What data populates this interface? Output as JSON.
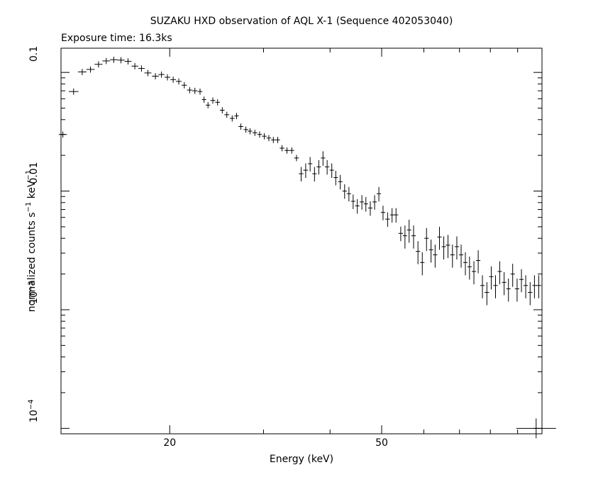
{
  "chart_data": {
    "type": "scatter",
    "title": "SUZAKU HXD observation of AQL X-1 (Sequence 402053040)",
    "subtitle": "Exposure time: 16.3ks",
    "xlabel": "Energy (keV)",
    "ylabel_parts": [
      "normalized counts s",
      "−1",
      " keV",
      "−1"
    ],
    "x_scale": "log",
    "y_scale": "log",
    "xlim": [
      12.5,
      100
    ],
    "ylim": [
      9e-05,
      0.16
    ],
    "x_ticks": [
      {
        "value": 20,
        "label": "20"
      },
      {
        "value": 50,
        "label": "50"
      }
    ],
    "y_ticks": [
      {
        "value": 0.1,
        "label": "0.1"
      },
      {
        "value": 0.01,
        "label": "0.01"
      },
      {
        "value": 0.001,
        "label": "10",
        "sup": "−3"
      },
      {
        "value": 0.0001,
        "label": "10",
        "sup": "−4"
      }
    ],
    "grid": false,
    "series": [
      {
        "points": [
          [
            12.6,
            0.03
          ],
          [
            13.2,
            0.069
          ],
          [
            13.7,
            0.101
          ],
          [
            14.2,
            0.106
          ],
          [
            14.7,
            0.117
          ],
          [
            15.2,
            0.125
          ],
          [
            15.7,
            0.128
          ],
          [
            16.2,
            0.127
          ],
          [
            16.7,
            0.124
          ],
          [
            17.2,
            0.113
          ],
          [
            17.7,
            0.108
          ],
          [
            18.2,
            0.099
          ],
          [
            18.8,
            0.093
          ],
          [
            19.3,
            0.096
          ],
          [
            19.8,
            0.091
          ],
          [
            20.3,
            0.087
          ],
          [
            20.8,
            0.084
          ],
          [
            21.3,
            0.078
          ],
          [
            21.8,
            0.071
          ],
          [
            22.3,
            0.07
          ],
          [
            22.8,
            0.069
          ],
          [
            23.2,
            0.059
          ],
          [
            23.6,
            0.053
          ],
          [
            24.1,
            0.058
          ],
          [
            24.6,
            0.056
          ],
          [
            25.1,
            0.048
          ],
          [
            25.6,
            0.044
          ],
          [
            26.2,
            0.041
          ],
          [
            26.7,
            0.043
          ],
          [
            27.2,
            0.035
          ],
          [
            27.8,
            0.033
          ],
          [
            28.3,
            0.032
          ],
          [
            28.9,
            0.031
          ],
          [
            29.5,
            0.03
          ],
          [
            30.1,
            0.029
          ],
          [
            30.7,
            0.028
          ],
          [
            31.3,
            0.027
          ],
          [
            31.9,
            0.027
          ],
          [
            32.5,
            0.023
          ],
          [
            33.2,
            0.022
          ],
          [
            33.9,
            0.022
          ],
          [
            34.6,
            0.019
          ],
          [
            35.3,
            0.014
          ],
          [
            36.0,
            0.015
          ],
          [
            36.7,
            0.017
          ],
          [
            37.4,
            0.014
          ],
          [
            38.1,
            0.016
          ],
          [
            38.8,
            0.019
          ],
          [
            39.5,
            0.016
          ],
          [
            40.3,
            0.015
          ],
          [
            41.0,
            0.013
          ],
          [
            41.8,
            0.012
          ],
          [
            42.6,
            0.01
          ],
          [
            43.4,
            0.0095
          ],
          [
            44.2,
            0.0082
          ],
          [
            45.0,
            0.0075
          ],
          [
            45.9,
            0.0081
          ],
          [
            46.7,
            0.0078
          ],
          [
            47.6,
            0.0072
          ],
          [
            48.5,
            0.0081
          ],
          [
            49.4,
            0.0095
          ],
          [
            50.3,
            0.0066
          ],
          [
            51.3,
            0.0058
          ],
          [
            52.3,
            0.0063
          ],
          [
            53.2,
            0.0063
          ],
          [
            54.3,
            0.0044
          ],
          [
            55.3,
            0.0042
          ],
          [
            56.3,
            0.0047
          ],
          [
            57.4,
            0.0042
          ],
          [
            58.5,
            0.0031
          ],
          [
            59.6,
            0.0025
          ],
          [
            60.7,
            0.004
          ],
          [
            61.9,
            0.0032
          ],
          [
            63.0,
            0.0029
          ],
          [
            64.2,
            0.0041
          ],
          [
            65.4,
            0.0034
          ],
          [
            66.6,
            0.0035
          ],
          [
            67.9,
            0.0029
          ],
          [
            69.2,
            0.0034
          ],
          [
            70.5,
            0.0029
          ],
          [
            71.8,
            0.0025
          ],
          [
            73.1,
            0.0023
          ],
          [
            74.5,
            0.0021
          ],
          [
            75.9,
            0.0026
          ],
          [
            77.3,
            0.0016
          ],
          [
            78.8,
            0.0014
          ],
          [
            80.3,
            0.0019
          ],
          [
            81.8,
            0.0016
          ],
          [
            83.3,
            0.0021
          ],
          [
            84.9,
            0.0017
          ],
          [
            86.5,
            0.0015
          ],
          [
            88.1,
            0.002
          ],
          [
            89.8,
            0.0015
          ],
          [
            91.5,
            0.0018
          ],
          [
            93.2,
            0.0016
          ],
          [
            95.0,
            0.0014
          ],
          [
            96.8,
            0.0016
          ],
          [
            98.6,
            0.0016
          ]
        ]
      }
    ],
    "reference_point": [
      97.5,
      0.0001
    ]
  }
}
